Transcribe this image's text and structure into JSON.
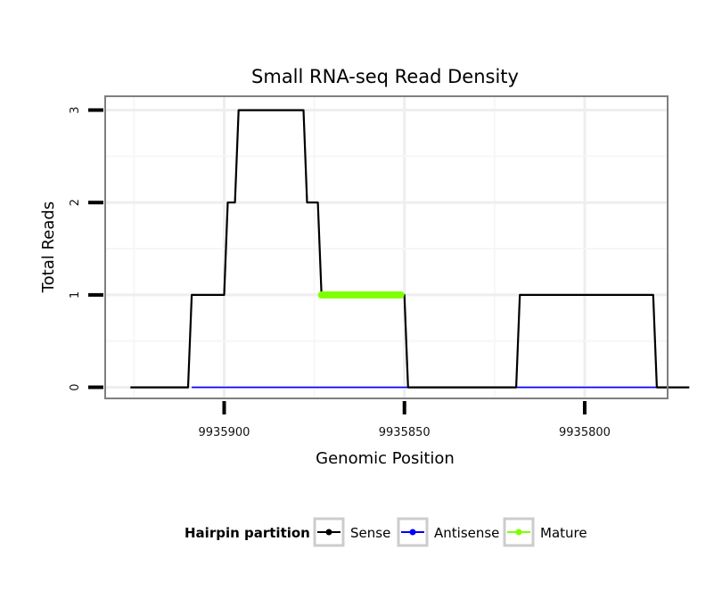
{
  "chart_data": {
    "type": "line",
    "title": "Small RNA-seq Read Density",
    "xlabel": "Genomic Position",
    "ylabel": "Total Reads",
    "x_reversed": true,
    "xlim": [
      9935777,
      9935933
    ],
    "ylim": [
      -0.12,
      3.15
    ],
    "x_ticks": [
      9935900,
      9935850,
      9935800
    ],
    "x_tick_labels": [
      "9935900",
      "9935850",
      "9935800"
    ],
    "y_ticks": [
      0,
      1,
      2,
      3
    ],
    "y_tick_labels": [
      "0",
      "1",
      "2",
      "3"
    ],
    "grid": true,
    "legend_position": "bottom",
    "legend": {
      "title": "Hairpin partition",
      "entries": [
        {
          "label": "Sense",
          "color": "#000000"
        },
        {
          "label": "Antisense",
          "color": "#0000ff"
        },
        {
          "label": "Mature",
          "color": "#7fff00"
        }
      ]
    },
    "series": [
      {
        "name": "Sense",
        "color": "#000000",
        "x": [
          9935926,
          9935910,
          9935909,
          9935900,
          9935899,
          9935897,
          9935896,
          9935894,
          9935893,
          9935878,
          9935877,
          9935874,
          9935873,
          9935871,
          9935870,
          9935868,
          9935867,
          9935850,
          9935849,
          9935835,
          9935834,
          9935819,
          9935818,
          9935800,
          9935799,
          9935781,
          9935780,
          9935771
        ],
        "y": [
          0,
          0,
          1,
          1,
          2,
          2,
          3,
          3,
          3,
          3,
          2,
          2,
          1,
          1,
          1,
          1,
          1,
          1,
          0,
          0,
          0,
          0,
          1,
          1,
          1,
          1,
          0,
          0
        ]
      },
      {
        "name": "Antisense",
        "color": "#0000ff",
        "x": [
          9935909,
          9935849,
          9935849,
          9935780
        ],
        "y": [
          0,
          0,
          0,
          0
        ]
      },
      {
        "name": "Mature",
        "color": "#7fff00",
        "x": [
          9935873,
          9935851
        ],
        "y": [
          1,
          1
        ]
      }
    ]
  }
}
